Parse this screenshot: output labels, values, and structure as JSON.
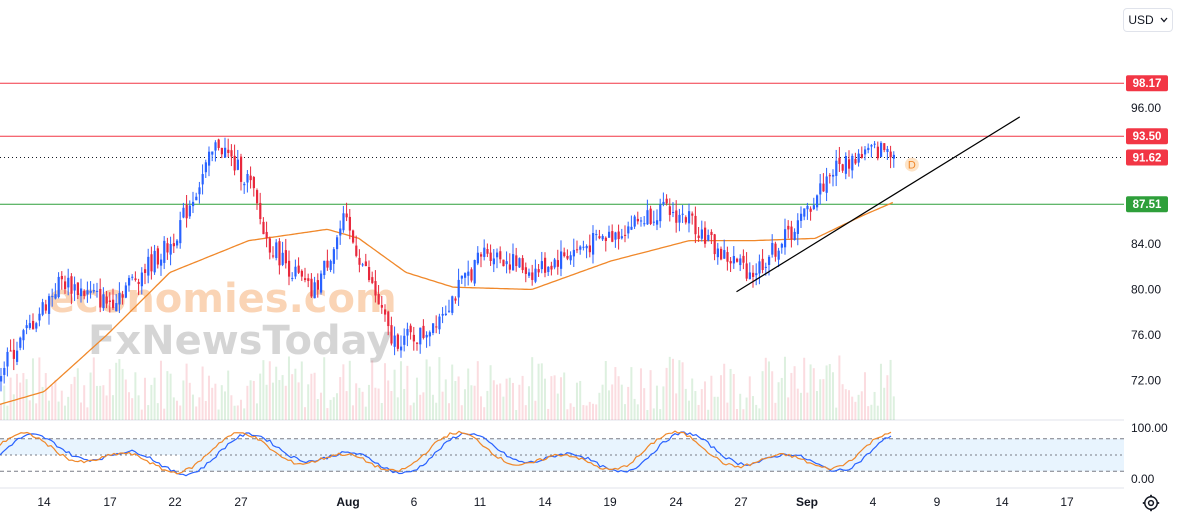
{
  "currency": {
    "label": "USD",
    "chevron": "chevron-down-icon"
  },
  "settings_icon": "gear-icon",
  "chart_data": [
    {
      "type": "candlestick",
      "title": "",
      "xlabel": "",
      "ylabel": "",
      "ylim": [
        68.5,
        105.5
      ],
      "y_ticks": [
        "96.00",
        "84.00",
        "80.00",
        "76.00",
        "72.00"
      ],
      "x_ticks": [
        "14",
        "17",
        "22",
        "27",
        "Aug",
        "6",
        "11",
        "14",
        "19",
        "24",
        "27",
        "Sep",
        "4",
        "9",
        "14",
        "17"
      ],
      "grid": false,
      "colors": {
        "up": "#2962ff",
        "down": "#e8283c",
        "ma": "#f0882a",
        "resistance": "#f23645",
        "support": "#2e9f3a",
        "trend": "#000000"
      },
      "anchors": [
        {
          "label": "Jul 11",
          "price": 72.5
        },
        {
          "label": "Jul 15",
          "price": 80.8
        },
        {
          "label": "Jul 18",
          "price": 78.8
        },
        {
          "label": "Jul 22",
          "price": 84.0
        },
        {
          "label": "Jul 25",
          "price": 93.0
        },
        {
          "label": "Jul 26",
          "price": 91.0
        },
        {
          "label": "Jul 27",
          "price": 89.5
        },
        {
          "label": "Jul 28",
          "price": 84.5
        },
        {
          "label": "Jul 31",
          "price": 79.5
        },
        {
          "label": "Aug 2",
          "price": 86.0
        },
        {
          "label": "Aug 3",
          "price": 82.8
        },
        {
          "label": "Aug 4",
          "price": 79.5
        },
        {
          "label": "Aug 5",
          "price": 75.5
        },
        {
          "label": "Aug 7",
          "price": 76.0
        },
        {
          "label": "Aug 9",
          "price": 79.5
        },
        {
          "label": "Aug 11",
          "price": 83.5
        },
        {
          "label": "Aug 14",
          "price": 81.5
        },
        {
          "label": "Aug 16",
          "price": 83.0
        },
        {
          "label": "Aug 19",
          "price": 84.8
        },
        {
          "label": "Aug 22",
          "price": 87.0
        },
        {
          "label": "Aug 24",
          "price": 86.2
        },
        {
          "label": "Aug 26",
          "price": 83.0
        },
        {
          "label": "Aug 28",
          "price": 81.5
        },
        {
          "label": "Aug 31",
          "price": 86.0
        },
        {
          "label": "Sep 2",
          "price": 90.5
        },
        {
          "label": "Sep 4",
          "price": 92.0
        },
        {
          "label": "Sep 6",
          "price": 92.5
        }
      ],
      "moving_average": [
        {
          "label": "Jul 11",
          "price": 69.8
        },
        {
          "label": "Jul 14",
          "price": 71.0
        },
        {
          "label": "Jul 18",
          "price": 76.0
        },
        {
          "label": "Jul 22",
          "price": 81.5
        },
        {
          "label": "Jul 27",
          "price": 84.3
        },
        {
          "label": "Aug 1",
          "price": 85.3
        },
        {
          "label": "Aug 3",
          "price": 84.5
        },
        {
          "label": "Aug 6",
          "price": 81.5
        },
        {
          "label": "Aug 9",
          "price": 80.2
        },
        {
          "label": "Aug 14",
          "price": 80.0
        },
        {
          "label": "Aug 19",
          "price": 82.5
        },
        {
          "label": "Aug 24",
          "price": 84.3
        },
        {
          "label": "Aug 28",
          "price": 84.3
        },
        {
          "label": "Sep 1",
          "price": 84.5
        },
        {
          "label": "Sep 4",
          "price": 86.5
        },
        {
          "label": "Sep 6",
          "price": 87.7
        }
      ],
      "levels": [
        {
          "name": "resistance-2",
          "value": "98.17",
          "price": 98.17,
          "style": "solid",
          "color": "#f23645"
        },
        {
          "name": "resistance-1",
          "value": "93.50",
          "price": 93.5,
          "style": "solid",
          "color": "#f23645"
        },
        {
          "name": "last-price",
          "value": "91.62",
          "price": 91.62,
          "style": "dotted",
          "color": "#f23645"
        },
        {
          "name": "support",
          "value": "87.51",
          "price": 87.51,
          "style": "solid",
          "color": "#2e9f3a"
        }
      ],
      "trendline": [
        {
          "label": "Aug 27",
          "price": 79.8
        },
        {
          "label": "Sep 14",
          "price": 95.2
        }
      ],
      "marker": {
        "label": "D",
        "price": 91.0
      }
    },
    {
      "type": "line",
      "title": "",
      "ylim": [
        0,
        100
      ],
      "y_ticks": [
        "100.00",
        "0.00"
      ],
      "bands": [
        80,
        20
      ],
      "series_colors": [
        "#2962ff",
        "#f0882a"
      ]
    }
  ]
}
